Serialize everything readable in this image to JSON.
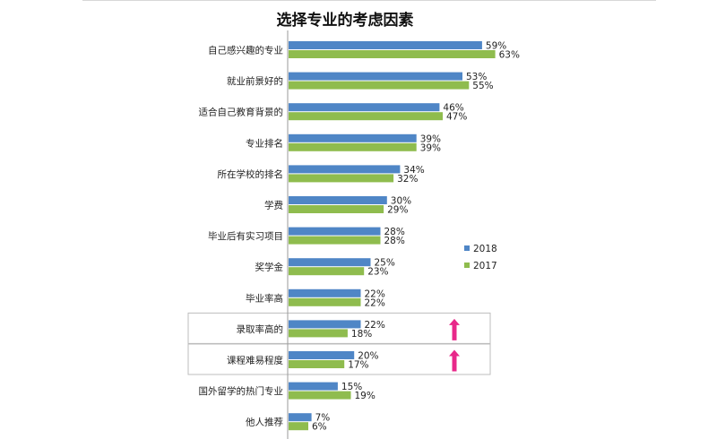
{
  "chart_data": {
    "type": "bar",
    "orientation": "horizontal",
    "title": "选择专业的考虑因素",
    "categories": [
      "自己感兴趣的专业",
      "就业前景好的",
      "适合自己教育背景的",
      "专业排名",
      "所在学校的排名",
      "学费",
      "毕业后有实习项目",
      "奖学金",
      "毕业率高",
      "录取率高的",
      "课程难易程度",
      "国外留学的热门专业",
      "他人推荐"
    ],
    "series": [
      {
        "name": "2018",
        "color": "#4f86c6",
        "values": [
          59,
          53,
          46,
          39,
          34,
          30,
          28,
          25,
          22,
          22,
          20,
          15,
          7
        ]
      },
      {
        "name": "2017",
        "color": "#8fbc4e",
        "values": [
          63,
          55,
          47,
          39,
          32,
          29,
          28,
          23,
          22,
          18,
          17,
          19,
          6
        ]
      }
    ],
    "value_suffix": "%",
    "xlim": [
      0,
      100
    ],
    "legend": "right",
    "highlighted_categories": [
      "录取率高的",
      "课程难易程度"
    ],
    "highlight_color": "#e8288a",
    "highlight_icon": "up-arrow-icon"
  }
}
